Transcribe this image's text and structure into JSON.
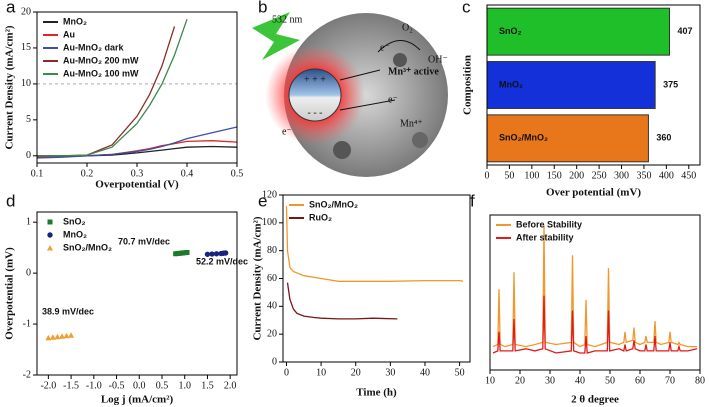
{
  "diagram": {
    "label": "b",
    "texts": [
      "532 nm",
      "O₂",
      "OH⁻",
      "e⁻",
      "Mn³⁺ active",
      "e⁻",
      "Mn⁴⁺",
      "e⁻",
      "+ + +",
      "- - -"
    ]
  },
  "chart_data": [
    {
      "type": "line",
      "label": "a",
      "xlabel": "Overpotential (V)",
      "ylabel": "Current Density (mA/cm²)",
      "x": [
        0.1,
        0.15,
        0.2,
        0.25,
        0.3,
        0.325,
        0.35,
        0.375,
        0.4,
        0.45,
        0.5
      ],
      "series": [
        {
          "name": "MnO₂",
          "color": "#222222",
          "values": [
            0,
            0,
            0,
            0.1,
            0.4,
            0.6,
            0.8,
            1.0,
            1.2,
            1.3,
            1.2
          ]
        },
        {
          "name": "Au",
          "color": "#e0262b",
          "values": [
            -0.2,
            -0.1,
            0,
            0.2,
            0.7,
            1.0,
            1.4,
            1.7,
            2.0,
            2.1,
            1.9
          ]
        },
        {
          "name": "Au-MnO₂ dark",
          "color": "#3b4fa8",
          "values": [
            -0.3,
            -0.2,
            0,
            0.2,
            0.6,
            0.9,
            1.3,
            1.8,
            2.4,
            3.2,
            4.0
          ]
        },
        {
          "name": "Au-MnO₂ 200 mW",
          "color": "#8b2a2a",
          "values": [
            0,
            0,
            0.1,
            1.5,
            5.5,
            8.5,
            12.5,
            18,
            null,
            null,
            null
          ]
        },
        {
          "name": "Au-MnO₂ 100 mW",
          "color": "#3c8a4a",
          "values": [
            0,
            0,
            0.1,
            1.2,
            4.5,
            7,
            10,
            14,
            19,
            null,
            null
          ]
        }
      ],
      "hline": 10,
      "xlim": [
        0.1,
        0.5
      ],
      "xticks": [
        0.1,
        0.2,
        0.3,
        0.4,
        0.5
      ],
      "ylim": [
        -1,
        20
      ],
      "yticks": [
        0,
        5,
        10,
        15,
        20
      ],
      "legend": "top-left"
    },
    {
      "type": "bar",
      "label": "c",
      "xlabel": "Over potential (mV)",
      "ylabel": "Composition",
      "categories": [
        "SnO₂",
        "MnO₂",
        "SnO₂/MnO₂"
      ],
      "values": [
        407,
        375,
        360
      ],
      "colors": [
        "#1fbf2a",
        "#1430d8",
        "#e8761a"
      ],
      "xlim": [
        0,
        475
      ],
      "xticks": [
        0,
        50,
        100,
        150,
        200,
        250,
        300,
        350,
        400,
        450
      ]
    },
    {
      "type": "scatter",
      "label": "d",
      "xlabel": "Log j (mA/cm²)",
      "ylabel": "Overpotential (mV)",
      "series": [
        {
          "name": "SnO₂",
          "color": "#1c7a2a",
          "marker": "square",
          "x": [
            0.8,
            0.85,
            0.9,
            0.95,
            1.0,
            1.05
          ],
          "values": [
            0.38,
            0.385,
            0.39,
            0.395,
            0.4,
            0.405
          ]
        },
        {
          "name": "MnO₂",
          "color": "#1a237e",
          "marker": "circle",
          "x": [
            1.5,
            1.6,
            1.7,
            1.8,
            1.85,
            1.9
          ],
          "values": [
            0.37,
            0.375,
            0.38,
            0.385,
            0.39,
            0.395
          ]
        },
        {
          "name": "SnO₂/MnO₂",
          "color": "#f0a030",
          "marker": "triangle",
          "x": [
            -2.0,
            -1.9,
            -1.8,
            -1.7,
            -1.6,
            -1.5
          ],
          "values": [
            -1.27,
            -1.26,
            -1.25,
            -1.24,
            -1.23,
            -1.22
          ]
        }
      ],
      "annotations": [
        "70.7 mV/dec",
        "52.2 mV/dec",
        "38.9 mV/dec"
      ],
      "xlim": [
        -2.25,
        2.15
      ],
      "xticks": [
        {
          "value": -2,
          "label": "-2.0"
        },
        {
          "value": -1.5,
          "label": "-1.5"
        },
        {
          "value": -1,
          "label": "-1.0"
        },
        {
          "value": -0.5,
          "label": "-0.5"
        },
        {
          "value": 0,
          "label": "0.0"
        },
        {
          "value": 0.5,
          "label": "0.5"
        },
        {
          "value": 1,
          "label": "1.0"
        },
        {
          "value": 1.5,
          "label": "1.5"
        },
        {
          "value": 2,
          "label": "2.0"
        }
      ],
      "ylim": [
        -2,
        1.2
      ],
      "yticks": [
        1,
        0,
        -1,
        -2
      ],
      "legend": "top-left"
    },
    {
      "type": "line",
      "label": "e",
      "xlabel": "Time (h)",
      "ylabel": "Current Density (mA/cm²)",
      "series": [
        {
          "name": "SnO₂/MnO₂",
          "color": "#f0982a",
          "x": [
            0,
            0.3,
            1,
            2,
            5,
            10,
            15,
            20,
            30,
            40,
            50,
            51
          ],
          "values": [
            112,
            80,
            68,
            65,
            62,
            60,
            58,
            58,
            58,
            58.5,
            58.5,
            58
          ]
        },
        {
          "name": "RuO₂",
          "color": "#7a1616",
          "x": [
            0.3,
            1,
            2,
            3,
            5,
            8,
            10,
            15,
            20,
            25,
            32
          ],
          "values": [
            57,
            45,
            38,
            35,
            33,
            32,
            31.5,
            31,
            31,
            31.5,
            31
          ]
        }
      ],
      "xlim": [
        -1,
        53
      ],
      "xticks": [
        0,
        10,
        20,
        30,
        40,
        50
      ],
      "ylim": [
        0,
        120
      ],
      "yticks": [
        0,
        20,
        40,
        60,
        80,
        100,
        120
      ],
      "legend": "top-left"
    },
    {
      "type": "line",
      "label": "f",
      "xlabel": "2 θ degree",
      "x": [
        11,
        12.6,
        13,
        13.4,
        15,
        17.6,
        18,
        18.4,
        22,
        25,
        27.6,
        28,
        28.4,
        32,
        37.1,
        37.5,
        37.9,
        40,
        41.6,
        42,
        42.4,
        45,
        49.1,
        49.5,
        49.9,
        53,
        54.6,
        55,
        55.4,
        57.6,
        58,
        58.4,
        60,
        61.6,
        62,
        62.4,
        64.6,
        65,
        65.4,
        67,
        69.6,
        70,
        70.4,
        72.6,
        73,
        73.4,
        76,
        79
      ],
      "series": [
        {
          "name": "Before Stability",
          "color": "#f0982a",
          "values": [
            33,
            34,
            60,
            34,
            33,
            34,
            68,
            34,
            33,
            34,
            35,
            90,
            35,
            34,
            35,
            76,
            35,
            33,
            34,
            55,
            34,
            33,
            35,
            70,
            35,
            34,
            35,
            40,
            35,
            36,
            42,
            35,
            34,
            35,
            38,
            35,
            35,
            45,
            35,
            34,
            35,
            40,
            35,
            34,
            35,
            34,
            33,
            33
          ]
        },
        {
          "name": "After stability",
          "color": "#e01b1b",
          "values": [
            30,
            31,
            40,
            31,
            31,
            31,
            46,
            31,
            32,
            31,
            32,
            57,
            32,
            30,
            31,
            50,
            31,
            30,
            30,
            38,
            30,
            31,
            31,
            50,
            31,
            32,
            31,
            34,
            31,
            32,
            36,
            32,
            31,
            31,
            34,
            31,
            31,
            38,
            31,
            31,
            31,
            35,
            31,
            31,
            33,
            31,
            31,
            32
          ]
        }
      ],
      "xlim": [
        10,
        80
      ],
      "xticks": [
        10,
        20,
        30,
        40,
        50,
        60,
        70,
        80
      ],
      "ylim": [
        22,
        95
      ],
      "legend": "top-left"
    }
  ]
}
